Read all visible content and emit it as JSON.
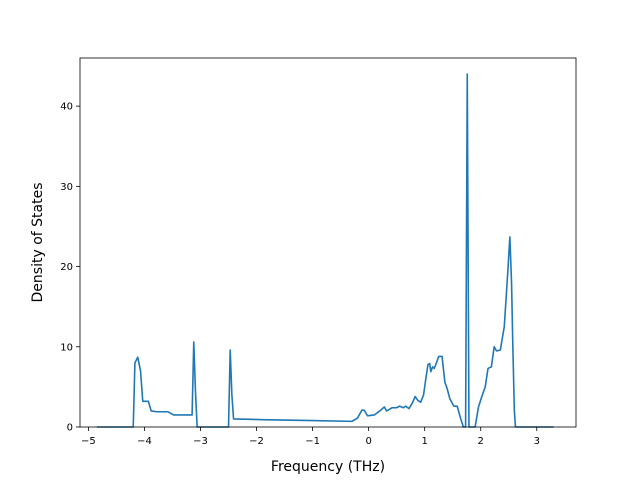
{
  "chart_data": {
    "type": "line",
    "title": "",
    "xlabel": "Frequency (THz)",
    "ylabel": "Density of States",
    "xlim": [
      -5.15,
      3.7
    ],
    "ylim": [
      0,
      46
    ],
    "grid": false,
    "legend": "none",
    "line_color": "#1f77b4",
    "x_ticks": [
      -5,
      -4,
      -3,
      -2,
      -1,
      0,
      1,
      2,
      3
    ],
    "x_tick_labels": [
      "−5",
      "−4",
      "−3",
      "−2",
      "−1",
      "0",
      "1",
      "2",
      "3"
    ],
    "y_ticks": [
      0,
      10,
      20,
      30,
      40
    ],
    "y_tick_labels": [
      "0",
      "10",
      "20",
      "30",
      "40"
    ],
    "series": [
      {
        "x": [
          -4.85,
          -4.2,
          -4.17,
          -4.12,
          -4.07,
          -4.03,
          -3.93,
          -3.88,
          -3.78,
          -3.58,
          -3.48,
          -3.4,
          -3.2,
          -3.15,
          -3.12,
          -3.09,
          -3.06,
          -2.5,
          -2.47,
          -2.44,
          -2.41,
          -1.8,
          -1.75,
          -1.0,
          -0.3,
          -0.2,
          -0.12,
          -0.08,
          -0.02,
          0.1,
          0.2,
          0.28,
          0.32,
          0.37,
          0.42,
          0.5,
          0.55,
          0.62,
          0.66,
          0.72,
          0.78,
          0.83,
          0.88,
          0.93,
          0.98,
          1.03,
          1.06,
          1.09,
          1.11,
          1.14,
          1.17,
          1.21,
          1.25,
          1.31,
          1.36,
          1.4,
          1.45,
          1.52,
          1.58,
          1.64,
          1.69,
          1.73,
          1.76,
          1.79,
          1.8,
          1.83,
          1.86,
          1.9,
          1.96,
          2.02,
          2.08,
          2.13,
          2.19,
          2.24,
          2.28,
          2.3,
          2.35,
          2.42,
          2.48,
          2.52,
          2.55,
          2.57,
          2.59,
          2.6,
          2.62,
          2.64,
          2.65,
          3.3
        ],
        "y": [
          0,
          0,
          8.0,
          8.7,
          7.0,
          3.2,
          3.2,
          2.0,
          1.9,
          1.9,
          1.5,
          1.5,
          1.5,
          1.5,
          10.6,
          4.5,
          0,
          0,
          9.6,
          4.0,
          1.0,
          0.9,
          0.9,
          0.8,
          0.7,
          1.1,
          2.1,
          2.1,
          1.4,
          1.5,
          2.0,
          2.5,
          2.0,
          2.2,
          2.4,
          2.4,
          2.6,
          2.4,
          2.6,
          2.3,
          3.0,
          3.8,
          3.3,
          3.1,
          4.0,
          6.5,
          7.8,
          7.9,
          6.9,
          7.5,
          7.3,
          8.0,
          8.8,
          8.8,
          5.6,
          4.8,
          3.5,
          2.6,
          2.6,
          1.1,
          0,
          0,
          44.0,
          0,
          0,
          0,
          0,
          0,
          2.5,
          3.8,
          5.0,
          7.3,
          7.5,
          10.0,
          9.5,
          9.5,
          9.6,
          12.5,
          19.0,
          23.7,
          18.0,
          11.0,
          5.0,
          2.0,
          0,
          0,
          0,
          0
        ]
      }
    ]
  }
}
